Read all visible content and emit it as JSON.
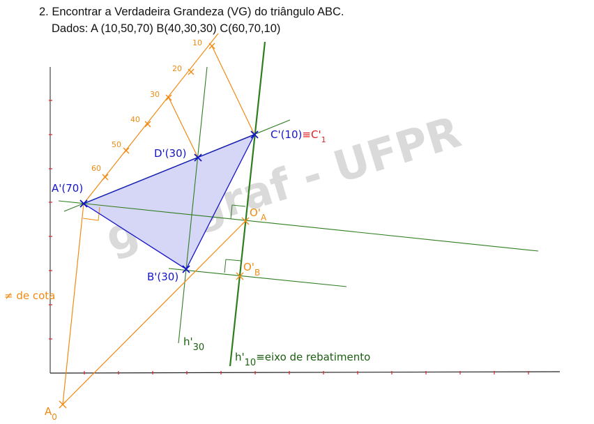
{
  "problem": {
    "statement": "2. Encontrar a Verdadeira Grandeza (VG) do triângulo ABC.",
    "data_line": "Dados: A (10,50,70)  B(40,30,30) C(60,70,10)"
  },
  "watermark": "geograf - UFPR",
  "scale_ticks": [
    "10",
    "20",
    "30",
    "40",
    "50",
    "60"
  ],
  "points": {
    "A_prime": "A'(70)",
    "B_prime": "B'(30)",
    "C_prime_main": "C'(10)",
    "equiv": "≡",
    "C1": "C'",
    "C1_sub": "1",
    "D_prime": "D'(30)",
    "OA": "O'",
    "OA_sub": "A",
    "OB": "O'",
    "OB_sub": "B",
    "A0": "A",
    "A0_sub": "0"
  },
  "lines": {
    "h30": "h'",
    "h30_sub": "30",
    "h10": "h'",
    "h10_sub": "10",
    "h10_desc": "≡eixo de rebatimento",
    "cota": "≠ de cota"
  },
  "colors": {
    "orange": "#f08a12",
    "green": "#2e7d1f",
    "blue": "#1414c8",
    "red": "#e02020",
    "triangle_fill": "#d6d6f6"
  }
}
